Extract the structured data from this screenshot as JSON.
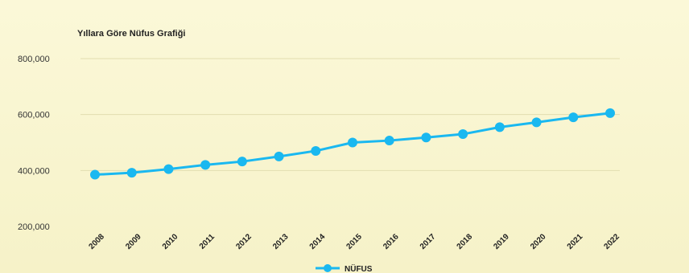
{
  "chart_data": {
    "type": "line",
    "title": "Yıllara Göre Nüfus Grafiği",
    "xlabel": "",
    "ylabel": "",
    "categories": [
      "2008",
      "2009",
      "2010",
      "2011",
      "2012",
      "2013",
      "2014",
      "2015",
      "2016",
      "2017",
      "2018",
      "2019",
      "2020",
      "2021",
      "2022"
    ],
    "series": [
      {
        "name": "NÜFUS",
        "color": "#1ab8f0",
        "values": [
          385000,
          392000,
          405000,
          420000,
          432000,
          450000,
          470000,
          500000,
          507000,
          518000,
          530000,
          555000,
          572000,
          590000,
          605000
        ]
      }
    ],
    "yticks": [
      200000,
      400000,
      600000,
      800000
    ],
    "ytick_labels": [
      "200,000",
      "400,000",
      "600,000",
      "800,000"
    ],
    "ylim": [
      200000,
      800000
    ],
    "grid": true,
    "legend": "bottom-center"
  }
}
